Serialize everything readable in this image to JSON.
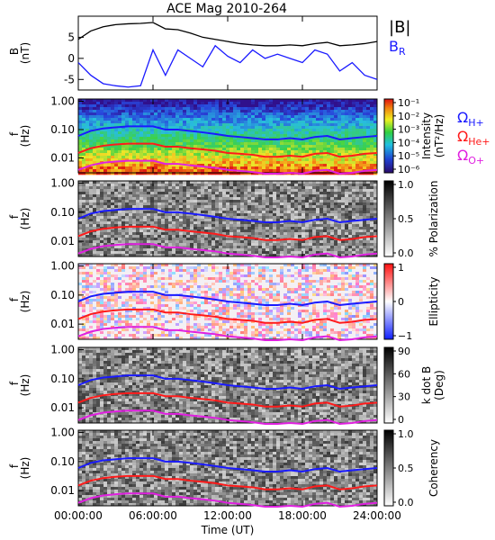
{
  "title": "ACE Mag 2010-264",
  "time_axis": {
    "label": "Time (UT)",
    "ticks": [
      "00:00:00",
      "06:00:00",
      "12:00:00",
      "18:00:00",
      "24:00:00"
    ],
    "range_hours": [
      0,
      24
    ]
  },
  "panels": [
    {
      "id": "b-field",
      "ylabel": "B",
      "yunit": "(nT)",
      "ticks": [
        "5",
        "0",
        "-5"
      ],
      "ylim": [
        -7.5,
        10
      ]
    },
    {
      "id": "intensity",
      "ylabel": "f",
      "yunit": "(Hz)",
      "ticks": [
        "1.00",
        "0.10",
        "0.01"
      ],
      "colorbar_label": "Intensity",
      "colorbar_unit": "(nT²/Hz)",
      "colorbar_ticks": [
        "10⁻¹",
        "10⁻²",
        "10⁻³",
        "10⁻⁴",
        "10⁻⁵",
        "10⁻⁶"
      ]
    },
    {
      "id": "polarization",
      "ylabel": "f",
      "yunit": "(Hz)",
      "ticks": [
        "1.00",
        "0.10",
        "0.01"
      ],
      "colorbar_label": "% Polarization",
      "colorbar_ticks": [
        "1.0",
        "0.5",
        "0.0"
      ]
    },
    {
      "id": "ellipticity",
      "ylabel": "f",
      "yunit": "(Hz)",
      "ticks": [
        "1.00",
        "0.10",
        "0.01"
      ],
      "colorbar_label": "Ellipticity",
      "colorbar_ticks": [
        "1",
        "0",
        "−1"
      ]
    },
    {
      "id": "kdotb",
      "ylabel": "f",
      "yunit": "(Hz)",
      "ticks": [
        "1.00",
        "0.10",
        "0.01"
      ],
      "colorbar_label": "k dot B",
      "colorbar_unit": "(Deg)",
      "colorbar_ticks": [
        "90",
        "60",
        "30",
        "0"
      ]
    },
    {
      "id": "coherency",
      "ylabel": "f",
      "yunit": "(Hz)",
      "ticks": [
        "1.00",
        "0.10",
        "0.01"
      ],
      "colorbar_label": "Coherency",
      "colorbar_ticks": [
        "1.0",
        "0.5",
        "0.0"
      ]
    }
  ],
  "legend_b": [
    {
      "label": "|B|",
      "color": "#000000"
    },
    {
      "label": "B",
      "sub": "R",
      "color": "#1a1aff"
    }
  ],
  "legend_gyro": [
    {
      "label": "Ω",
      "sub": "H+",
      "color": "#1a1aff"
    },
    {
      "label": "Ω",
      "sub": "He+",
      "color": "#ff1a1a"
    },
    {
      "label": "Ω",
      "sub": "O+",
      "color": "#e020e0"
    }
  ],
  "colors": {
    "btotal": "#000000",
    "br": "#1a1aff",
    "gyro_h": "#1a1aff",
    "gyro_he": "#ff1a1a",
    "gyro_o": "#e020e0"
  },
  "chart_data": {
    "type": "line",
    "x": [
      0,
      1,
      2,
      3,
      4,
      5,
      6,
      7,
      8,
      9,
      10,
      11,
      12,
      13,
      14,
      15,
      16,
      17,
      18,
      19,
      20,
      21,
      22,
      23,
      24
    ],
    "xlabel": "Time (UT)",
    "series": [
      {
        "name": "|B|",
        "unit": "nT",
        "values": [
          4.5,
          6.5,
          7.5,
          8.0,
          8.2,
          8.3,
          8.5,
          7.0,
          6.8,
          6.0,
          5.0,
          4.5,
          4.0,
          3.5,
          3.2,
          3.0,
          3.0,
          3.2,
          3.0,
          3.5,
          3.8,
          3.0,
          3.2,
          3.5,
          4.0
        ]
      },
      {
        "name": "B_R",
        "unit": "nT",
        "values": [
          -1.0,
          -4.0,
          -6.0,
          -6.5,
          -6.8,
          -6.5,
          2.0,
          -4.0,
          2.0,
          0.0,
          -2.0,
          3.0,
          0.5,
          -1.0,
          2.0,
          0.0,
          1.0,
          0.0,
          -1.0,
          2.0,
          1.0,
          -3.0,
          -1.0,
          -4.0,
          -5.0
        ]
      },
      {
        "name": "Ω_H+",
        "unit": "Hz",
        "values": [
          0.06,
          0.09,
          0.11,
          0.12,
          0.13,
          0.13,
          0.13,
          0.1,
          0.1,
          0.09,
          0.08,
          0.07,
          0.06,
          0.055,
          0.05,
          0.045,
          0.045,
          0.05,
          0.045,
          0.055,
          0.06,
          0.045,
          0.05,
          0.055,
          0.06
        ]
      },
      {
        "name": "Ω_He+",
        "unit": "Hz",
        "values": [
          0.015,
          0.022,
          0.027,
          0.03,
          0.032,
          0.032,
          0.032,
          0.025,
          0.025,
          0.022,
          0.02,
          0.018,
          0.015,
          0.014,
          0.013,
          0.011,
          0.011,
          0.012,
          0.011,
          0.014,
          0.015,
          0.011,
          0.012,
          0.014,
          0.015
        ]
      },
      {
        "name": "Ω_O+",
        "unit": "Hz",
        "values": [
          0.0038,
          0.0055,
          0.0068,
          0.0075,
          0.008,
          0.008,
          0.008,
          0.0062,
          0.0062,
          0.0055,
          0.005,
          0.0045,
          0.0038,
          0.0035,
          0.0032,
          0.0028,
          0.0028,
          0.003,
          0.0028,
          0.0035,
          0.0038,
          0.0028,
          0.003,
          0.0035,
          0.0038
        ]
      }
    ],
    "ylim_b": [
      -7.5,
      10
    ],
    "ylim_f": [
      0.003,
      1.2
    ],
    "yscale_f": "log"
  }
}
